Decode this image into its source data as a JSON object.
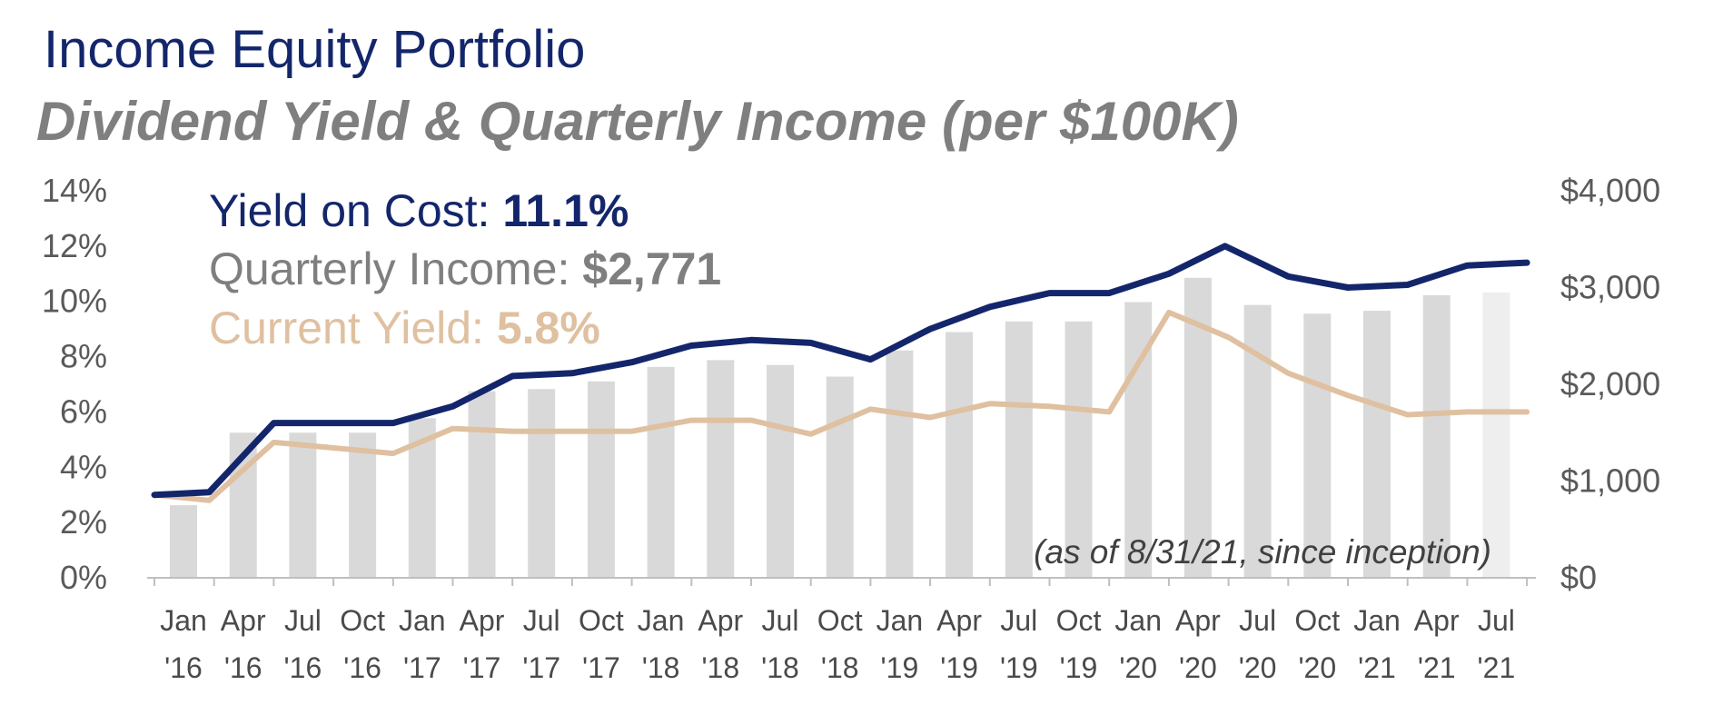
{
  "title": "Income Equity Portfolio",
  "subtitle": "Dividend Yield & Quarterly Income (per $100K)",
  "colors": {
    "yield_on_cost": "#14266b",
    "current_yield": "#dfc0a0",
    "quarterly_income": "#d9d9d9",
    "quarterly_income_last": "#eeeeee",
    "axis": "#bfbfbf"
  },
  "legend": {
    "yield_on_cost_label": "Yield on Cost: ",
    "yield_on_cost_value": "11.1%",
    "quarterly_income_label": "Quarterly Income: ",
    "quarterly_income_value": "$2,771",
    "current_yield_label": "Current Yield: ",
    "current_yield_value": "5.8%"
  },
  "annotation": "(as of 8/31/21, since inception)",
  "chart_data": {
    "type": "bar",
    "title": "Dividend Yield & Quarterly Income (per $100K)",
    "categories": [
      "Jan '16",
      "Apr '16",
      "Jul '16",
      "Oct '16",
      "Jan '17",
      "Apr '17",
      "Jul '17",
      "Oct '17",
      "Jan '18",
      "Apr '18",
      "Jul '18",
      "Oct '18",
      "Jan '19",
      "Apr '19",
      "Jul '19",
      "Oct '19",
      "Jan '20",
      "Apr '20",
      "Jul '20",
      "Oct '20",
      "Jan '21",
      "Apr '21",
      "Jul '21"
    ],
    "x_tick_labels": [
      [
        "Jan",
        "'16"
      ],
      [
        "Apr",
        "'16"
      ],
      [
        "Jul",
        "'16"
      ],
      [
        "Oct",
        "'16"
      ],
      [
        "Jan",
        "'17"
      ],
      [
        "Apr",
        "'17"
      ],
      [
        "Jul",
        "'17"
      ],
      [
        "Oct",
        "'17"
      ],
      [
        "Jan",
        "'18"
      ],
      [
        "Apr",
        "'18"
      ],
      [
        "Jul",
        "'18"
      ],
      [
        "Oct",
        "'18"
      ],
      [
        "Jan",
        "'19"
      ],
      [
        "Apr",
        "'19"
      ],
      [
        "Jul",
        "'19"
      ],
      [
        "Oct",
        "'19"
      ],
      [
        "Jan",
        "'20"
      ],
      [
        "Apr",
        "'20"
      ],
      [
        "Jul",
        "'20"
      ],
      [
        "Oct",
        "'20"
      ],
      [
        "Jan",
        "'21"
      ],
      [
        "Apr",
        "'21"
      ],
      [
        "Jul",
        "'21"
      ]
    ],
    "left_axis": {
      "ylim": [
        0,
        14
      ],
      "ticks": [
        0,
        2,
        4,
        6,
        8,
        10,
        12,
        14
      ],
      "tick_labels": [
        "0%",
        "2%",
        "4%",
        "6%",
        "8%",
        "10%",
        "12%",
        "14%"
      ]
    },
    "right_axis": {
      "ylim": [
        0,
        4000
      ],
      "ticks": [
        0,
        1000,
        2000,
        3000,
        4000
      ],
      "tick_labels": [
        "$0",
        "$1,000",
        "$2,000",
        "$3,000",
        "$4,000"
      ]
    },
    "bars": {
      "name": "Quarterly Income",
      "axis": "right",
      "values": [
        750,
        1500,
        1500,
        1500,
        1650,
        1930,
        1950,
        2030,
        2180,
        2250,
        2200,
        2080,
        2350,
        2540,
        2650,
        2650,
        2850,
        3100,
        2820,
        2730,
        2760,
        2920,
        2950
      ]
    },
    "series": [
      {
        "name": "Yield on Cost",
        "axis": "left",
        "x": [
          0,
          0.92,
          2,
          3,
          4,
          5,
          6,
          7,
          8,
          9,
          10,
          11,
          12,
          13,
          14,
          15,
          16,
          17,
          17.94,
          19,
          20,
          21,
          22,
          23
        ],
        "values": [
          3.0,
          3.1,
          5.6,
          5.6,
          5.6,
          6.2,
          7.3,
          7.4,
          7.8,
          8.4,
          8.6,
          8.5,
          7.9,
          9.0,
          9.8,
          10.3,
          10.3,
          11.0,
          12.0,
          10.9,
          10.5,
          10.6,
          11.3,
          11.4
        ]
      },
      {
        "name": "Current Yield",
        "axis": "left",
        "x": [
          0,
          0.92,
          2,
          3,
          4,
          5,
          6,
          7,
          8,
          9,
          10,
          11,
          12,
          13,
          14,
          15,
          16,
          17,
          18,
          19,
          20,
          21,
          22,
          23
        ],
        "values": [
          3.0,
          2.8,
          4.9,
          4.7,
          4.5,
          5.4,
          5.3,
          5.3,
          5.3,
          5.7,
          5.7,
          5.2,
          6.1,
          5.8,
          6.3,
          6.2,
          6.0,
          9.6,
          8.7,
          7.4,
          6.6,
          5.9,
          6.0,
          6.0
        ]
      }
    ]
  }
}
